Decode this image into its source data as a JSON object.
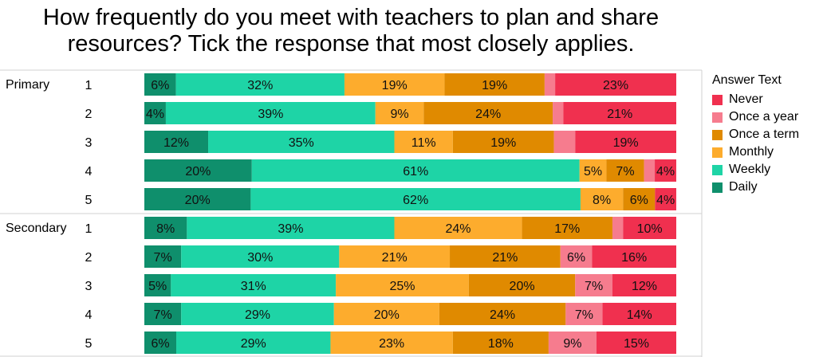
{
  "title_lines": [
    "How frequently do you meet with teachers to plan and share",
    "resources? Tick the response that most closely applies."
  ],
  "legend": {
    "title": "Answer Text",
    "items": [
      {
        "label": "Never",
        "color": "#f0304f"
      },
      {
        "label": "Once a year",
        "color": "#f67c8e"
      },
      {
        "label": "Once a term",
        "color": "#e08a00"
      },
      {
        "label": "Monthly",
        "color": "#fdac2d"
      },
      {
        "label": "Weekly",
        "color": "#1ed4a6"
      },
      {
        "label": "Daily",
        "color": "#0f8f6c"
      }
    ]
  },
  "chart_data": {
    "type": "bar",
    "orientation": "horizontal-stacked-100",
    "stack_order": [
      "Daily",
      "Weekly",
      "Monthly",
      "Once a term",
      "Once a year",
      "Never"
    ],
    "groups": [
      {
        "name": "Primary",
        "rows": [
          {
            "label": "1",
            "values": [
              6,
              32,
              19,
              19,
              2,
              23
            ],
            "labels": [
              "6%",
              "32%",
              "19%",
              "19%",
              "",
              "23%"
            ]
          },
          {
            "label": "2",
            "values": [
              4,
              39,
              9,
              24,
              2,
              21
            ],
            "labels": [
              "4%",
              "39%",
              "9%",
              "24%",
              "",
              "21%"
            ]
          },
          {
            "label": "3",
            "values": [
              12,
              35,
              11,
              19,
              4,
              19
            ],
            "labels": [
              "12%",
              "35%",
              "11%",
              "19%",
              "",
              "19%"
            ]
          },
          {
            "label": "4",
            "values": [
              20,
              61,
              5,
              7,
              2,
              4
            ],
            "labels": [
              "20%",
              "61%",
              "5%",
              "7%",
              "",
              "4%"
            ]
          },
          {
            "label": "5",
            "values": [
              20,
              62,
              8,
              6,
              0,
              4
            ],
            "labels": [
              "20%",
              "62%",
              "8%",
              "6%",
              "",
              "4%"
            ]
          }
        ]
      },
      {
        "name": "Secondary",
        "rows": [
          {
            "label": "1",
            "values": [
              8,
              39,
              24,
              17,
              2,
              10
            ],
            "labels": [
              "8%",
              "39%",
              "24%",
              "17%",
              "",
              "10%"
            ]
          },
          {
            "label": "2",
            "values": [
              7,
              30,
              21,
              21,
              6,
              16
            ],
            "labels": [
              "7%",
              "30%",
              "21%",
              "21%",
              "6%",
              "16%"
            ]
          },
          {
            "label": "3",
            "values": [
              5,
              31,
              25,
              20,
              7,
              12
            ],
            "labels": [
              "5%",
              "31%",
              "25%",
              "20%",
              "7%",
              "12%"
            ]
          },
          {
            "label": "4",
            "values": [
              7,
              29,
              20,
              24,
              7,
              14
            ],
            "labels": [
              "7%",
              "29%",
              "20%",
              "24%",
              "7%",
              "14%"
            ]
          },
          {
            "label": "5",
            "values": [
              6,
              29,
              23,
              18,
              9,
              15
            ],
            "labels": [
              "6%",
              "29%",
              "23%",
              "18%",
              "9%",
              "15%"
            ]
          }
        ]
      }
    ],
    "xlim": [
      0,
      100
    ],
    "grid": false,
    "legend_position": "right"
  }
}
